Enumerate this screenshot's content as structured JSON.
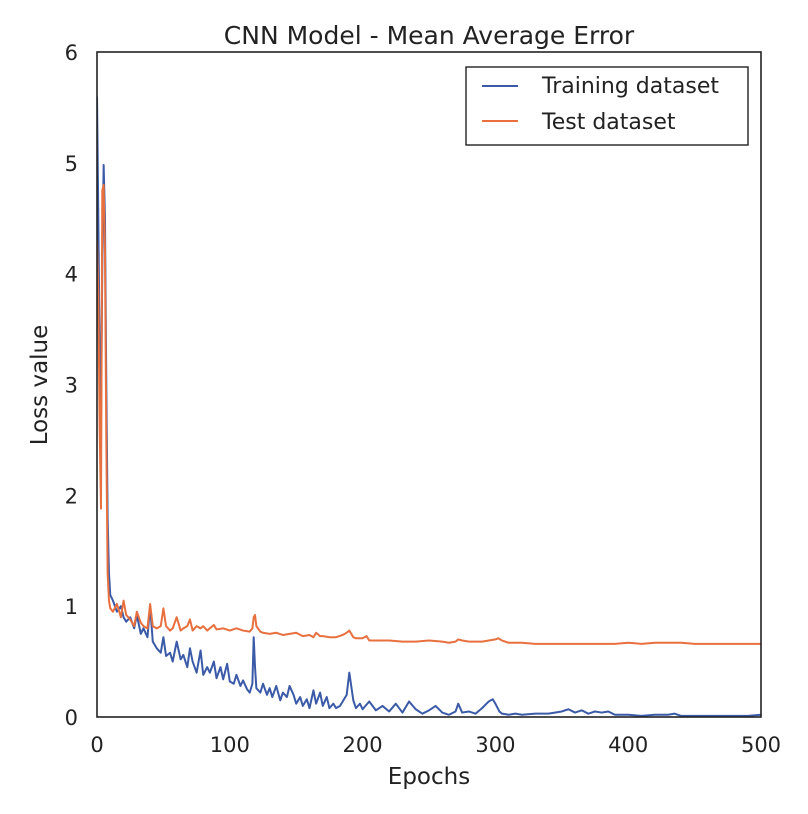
{
  "chart_data": {
    "type": "line",
    "title": "CNN Model - Mean Average Error",
    "xlabel": "Epochs",
    "ylabel": "Loss value",
    "xlim": [
      0,
      500
    ],
    "ylim": [
      0,
      6
    ],
    "xticks": [
      0,
      100,
      200,
      300,
      400,
      500
    ],
    "yticks": [
      0,
      1,
      2,
      3,
      4,
      5,
      6
    ],
    "grid": false,
    "legend_position": "top-right",
    "series": [
      {
        "name": "Training dataset",
        "color": "#3b5ba8",
        "x": [
          0,
          1,
          2,
          3,
          4,
          5,
          6,
          7,
          8,
          9,
          10,
          12,
          15,
          18,
          20,
          22,
          25,
          28,
          30,
          33,
          35,
          38,
          40,
          42,
          45,
          48,
          50,
          52,
          55,
          57,
          60,
          63,
          65,
          68,
          70,
          72,
          75,
          78,
          80,
          83,
          85,
          88,
          90,
          93,
          95,
          98,
          100,
          103,
          105,
          108,
          110,
          113,
          115,
          117,
          118,
          119,
          120,
          123,
          125,
          128,
          130,
          132,
          135,
          138,
          140,
          143,
          145,
          148,
          150,
          153,
          155,
          158,
          160,
          163,
          165,
          168,
          170,
          173,
          175,
          178,
          180,
          183,
          185,
          188,
          190,
          193,
          195,
          198,
          200,
          205,
          210,
          215,
          220,
          225,
          230,
          235,
          240,
          245,
          250,
          255,
          260,
          265,
          270,
          272,
          275,
          280,
          285,
          290,
          295,
          298,
          300,
          303,
          305,
          310,
          315,
          320,
          330,
          340,
          350,
          355,
          360,
          365,
          370,
          375,
          380,
          385,
          390,
          400,
          410,
          420,
          430,
          435,
          440,
          450,
          460,
          470,
          480,
          490,
          500
        ],
        "values": [
          5.6,
          4.5,
          3.3,
          2.65,
          4.1,
          4.98,
          4.5,
          3.0,
          1.8,
          1.3,
          1.1,
          1.05,
          0.95,
          1.0,
          0.9,
          0.86,
          0.9,
          0.8,
          0.92,
          0.75,
          0.8,
          0.72,
          1.0,
          0.68,
          0.62,
          0.58,
          0.72,
          0.55,
          0.58,
          0.5,
          0.68,
          0.52,
          0.56,
          0.45,
          0.62,
          0.5,
          0.4,
          0.6,
          0.38,
          0.45,
          0.4,
          0.5,
          0.35,
          0.45,
          0.34,
          0.48,
          0.32,
          0.3,
          0.38,
          0.28,
          0.33,
          0.25,
          0.22,
          0.3,
          0.72,
          0.45,
          0.26,
          0.22,
          0.3,
          0.2,
          0.26,
          0.18,
          0.28,
          0.15,
          0.22,
          0.18,
          0.28,
          0.2,
          0.12,
          0.18,
          0.1,
          0.16,
          0.08,
          0.24,
          0.12,
          0.22,
          0.1,
          0.18,
          0.08,
          0.12,
          0.08,
          0.1,
          0.14,
          0.2,
          0.4,
          0.15,
          0.08,
          0.12,
          0.07,
          0.14,
          0.06,
          0.1,
          0.05,
          0.12,
          0.04,
          0.14,
          0.07,
          0.03,
          0.06,
          0.1,
          0.04,
          0.02,
          0.05,
          0.12,
          0.04,
          0.05,
          0.03,
          0.08,
          0.14,
          0.16,
          0.12,
          0.05,
          0.03,
          0.02,
          0.03,
          0.02,
          0.03,
          0.03,
          0.05,
          0.07,
          0.04,
          0.06,
          0.03,
          0.05,
          0.04,
          0.05,
          0.02,
          0.02,
          0.01,
          0.02,
          0.02,
          0.03,
          0.01,
          0.01,
          0.01,
          0.01,
          0.01,
          0.01,
          0.02
        ]
      },
      {
        "name": "Test dataset",
        "color": "#e8703e",
        "x": [
          0,
          1,
          2,
          3,
          4,
          5,
          6,
          7,
          8,
          9,
          10,
          12,
          15,
          18,
          20,
          22,
          25,
          28,
          30,
          33,
          35,
          38,
          40,
          42,
          45,
          48,
          50,
          52,
          55,
          57,
          60,
          63,
          65,
          68,
          70,
          72,
          75,
          78,
          80,
          83,
          85,
          88,
          90,
          95,
          100,
          105,
          110,
          115,
          117,
          118,
          119,
          120,
          123,
          125,
          130,
          135,
          140,
          145,
          150,
          155,
          160,
          163,
          165,
          168,
          170,
          175,
          180,
          185,
          188,
          190,
          193,
          195,
          200,
          203,
          205,
          210,
          220,
          230,
          240,
          250,
          260,
          265,
          270,
          272,
          275,
          280,
          290,
          295,
          300,
          302,
          305,
          310,
          320,
          330,
          340,
          350,
          360,
          370,
          380,
          390,
          400,
          410,
          420,
          430,
          435,
          440,
          450,
          460,
          470,
          480,
          490,
          500
        ],
        "values": [
          4.3,
          3.8,
          2.6,
          1.88,
          4.75,
          4.8,
          4.2,
          2.5,
          1.3,
          1.05,
          0.98,
          0.95,
          1.02,
          0.9,
          1.05,
          0.92,
          0.88,
          0.82,
          0.95,
          0.85,
          0.82,
          0.8,
          1.02,
          0.82,
          0.8,
          0.82,
          0.98,
          0.82,
          0.78,
          0.8,
          0.9,
          0.78,
          0.8,
          0.82,
          0.88,
          0.78,
          0.82,
          0.8,
          0.82,
          0.78,
          0.8,
          0.83,
          0.79,
          0.8,
          0.78,
          0.8,
          0.78,
          0.77,
          0.8,
          0.9,
          0.92,
          0.82,
          0.77,
          0.76,
          0.75,
          0.76,
          0.74,
          0.75,
          0.76,
          0.73,
          0.74,
          0.72,
          0.76,
          0.73,
          0.73,
          0.72,
          0.72,
          0.74,
          0.76,
          0.78,
          0.72,
          0.71,
          0.71,
          0.73,
          0.69,
          0.69,
          0.69,
          0.68,
          0.68,
          0.69,
          0.68,
          0.67,
          0.68,
          0.7,
          0.69,
          0.68,
          0.68,
          0.69,
          0.7,
          0.71,
          0.69,
          0.67,
          0.67,
          0.66,
          0.66,
          0.66,
          0.66,
          0.66,
          0.66,
          0.66,
          0.67,
          0.66,
          0.67,
          0.67,
          0.67,
          0.67,
          0.66,
          0.66,
          0.66,
          0.66,
          0.66,
          0.66
        ]
      }
    ]
  }
}
